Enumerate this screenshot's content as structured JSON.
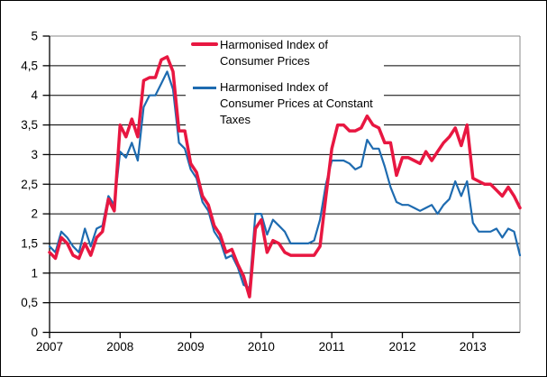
{
  "colors": {
    "hicp_line": "#e81741",
    "hicp_ct_line": "#1e6bb0",
    "gridline": "#000000",
    "axis": "#000000",
    "plot_frame": "#888888",
    "background": "#ffffff",
    "text": "#000000"
  },
  "legend": {
    "entry1_lines": [
      "Harmonised Index of",
      "Consumer Prices"
    ],
    "entry2_lines": [
      "Harmonised Index of",
      "Consumer Prices at Constant",
      "Taxes"
    ]
  },
  "chart_data": {
    "type": "line",
    "title": "",
    "xlabel": "",
    "ylabel": "",
    "x_unit": "month",
    "x_start": "2007-01",
    "x_end": "2013-09",
    "x_tick_labels": [
      "2007",
      "2008",
      "2009",
      "2010",
      "2011",
      "2012",
      "2013"
    ],
    "y_tick_labels": [
      "0",
      "0,5",
      "1",
      "1,5",
      "2",
      "2,5",
      "3",
      "3,5",
      "4",
      "4,5",
      "5"
    ],
    "ylim": [
      0,
      5
    ],
    "y_step": 0.5,
    "grid": "horizontal",
    "legend_position": "top-inside",
    "series": [
      {
        "name": "Harmonised Index of Consumer Prices",
        "color": "#e81741",
        "stroke_width": 3.5,
        "values": [
          1.35,
          1.25,
          1.6,
          1.5,
          1.3,
          1.25,
          1.5,
          1.3,
          1.6,
          1.7,
          2.25,
          2.05,
          3.5,
          3.3,
          3.6,
          3.3,
          4.25,
          4.3,
          4.3,
          4.6,
          4.65,
          4.4,
          3.4,
          3.4,
          2.85,
          2.7,
          2.3,
          2.15,
          1.8,
          1.65,
          1.35,
          1.4,
          1.15,
          0.95,
          0.6,
          1.75,
          1.9,
          1.35,
          1.55,
          1.5,
          1.35,
          1.3,
          1.3,
          1.3,
          1.3,
          1.3,
          1.45,
          2.3,
          3.1,
          3.5,
          3.5,
          3.4,
          3.4,
          3.45,
          3.65,
          3.5,
          3.45,
          3.2,
          3.2,
          2.65,
          2.95,
          2.95,
          2.9,
          2.85,
          3.05,
          2.9,
          3.05,
          3.2,
          3.3,
          3.45,
          3.15,
          3.5,
          2.6,
          2.55,
          2.5,
          2.5,
          2.4,
          2.3,
          2.45,
          2.3,
          2.1
        ]
      },
      {
        "name": "Harmonised Index of Consumer Prices at Constant Taxes",
        "color": "#1e6bb0",
        "stroke_width": 2.2,
        "values": [
          1.45,
          1.35,
          1.7,
          1.6,
          1.45,
          1.35,
          1.75,
          1.45,
          1.75,
          1.8,
          2.3,
          2.15,
          3.05,
          2.95,
          3.2,
          2.9,
          3.8,
          4.0,
          4.0,
          4.2,
          4.4,
          4.1,
          3.2,
          3.1,
          2.75,
          2.6,
          2.2,
          2.05,
          1.7,
          1.55,
          1.25,
          1.3,
          1.1,
          0.8,
          0.75,
          2.0,
          2.0,
          1.65,
          1.9,
          1.8,
          1.7,
          1.5,
          1.5,
          1.5,
          1.5,
          1.55,
          1.9,
          2.5,
          2.9,
          2.9,
          2.9,
          2.85,
          2.75,
          2.8,
          3.25,
          3.1,
          3.1,
          2.8,
          2.45,
          2.2,
          2.15,
          2.15,
          2.1,
          2.05,
          2.1,
          2.15,
          2.0,
          2.15,
          2.25,
          2.55,
          2.3,
          2.55,
          1.85,
          1.7,
          1.7,
          1.7,
          1.75,
          1.6,
          1.75,
          1.7,
          1.3
        ]
      }
    ]
  }
}
